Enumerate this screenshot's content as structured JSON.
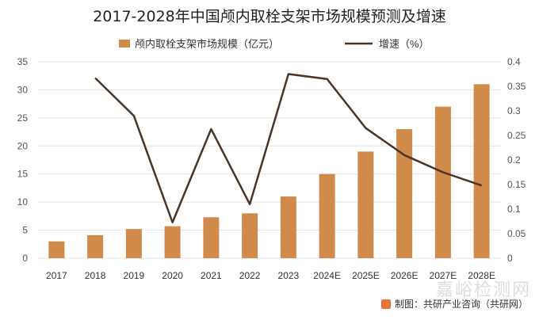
{
  "chart_data": {
    "type": "bar+line",
    "title": "2017-2028年中国颅内取栓支架市场规模预测及增速",
    "categories": [
      "2017",
      "2018",
      "2019",
      "2020",
      "2021",
      "2022",
      "2023",
      "2024E",
      "2025E",
      "2026E",
      "2027E",
      "2028E"
    ],
    "series": [
      {
        "name": "颅内取栓支架市场规模（亿元）",
        "type": "bar",
        "axis": "left",
        "color": "#d08a4a",
        "values": [
          3,
          4.1,
          5.2,
          5.7,
          7.3,
          8,
          11,
          15,
          19,
          23,
          27,
          31
        ]
      },
      {
        "name": "增速（%）",
        "type": "line",
        "axis": "right",
        "color": "#4a3426",
        "values": [
          null,
          0.367,
          0.29,
          0.073,
          0.263,
          0.11,
          0.375,
          0.365,
          0.265,
          0.21,
          0.175,
          0.148
        ]
      }
    ],
    "yleft": {
      "min": 0,
      "max": 35,
      "ticks": [
        "0",
        "5",
        "10",
        "15",
        "20",
        "25",
        "30",
        "35"
      ]
    },
    "yright": {
      "min": 0,
      "max": 0.4,
      "ticks": [
        "0",
        "0.05",
        "0.1",
        "0.15",
        "0.2",
        "0.25",
        "0.3",
        "0.35",
        "0.4"
      ]
    },
    "grid": true,
    "legend": "top"
  },
  "source": "制图：共研产业咨询（共研网）",
  "watermark": "嘉峪检测网"
}
